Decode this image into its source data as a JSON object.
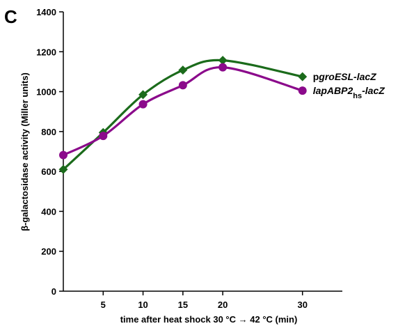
{
  "panel_label": "C",
  "chart_data": {
    "type": "line",
    "xlabel": "time after heat shock 30 °C → 42 °C (min)",
    "ylabel": "β-galactosidase activity (Miller units)",
    "xlim": [
      0,
      35
    ],
    "ylim": [
      0,
      1400
    ],
    "x_ticks": [
      5,
      10,
      15,
      20,
      30
    ],
    "y_ticks": [
      0,
      200,
      400,
      600,
      800,
      1000,
      1200,
      1400
    ],
    "grid": false,
    "legend_placement": "right, at line ends",
    "series": [
      {
        "name": "pgroESL-lacZ",
        "label_parts": [
          {
            "text": "p",
            "italic": false
          },
          {
            "text": "groESL-lacZ",
            "italic": true
          }
        ],
        "color": "#1b6b1b",
        "marker": "diamond",
        "x": [
          0,
          5,
          10,
          15,
          20,
          30
        ],
        "values": [
          610,
          795,
          985,
          1108,
          1157,
          1075
        ]
      },
      {
        "name": "lapABP2hs-lacZ",
        "label_parts": [
          {
            "text": "lapABP2",
            "italic": true
          },
          {
            "text": "hs",
            "italic": false,
            "sub": true
          },
          {
            "text": "-lacZ",
            "italic": true
          }
        ],
        "color": "#8b0a8b",
        "marker": "circle",
        "x": [
          0,
          5,
          10,
          15,
          20,
          30
        ],
        "values": [
          682,
          778,
          937,
          1032,
          1122,
          1005
        ]
      }
    ]
  }
}
